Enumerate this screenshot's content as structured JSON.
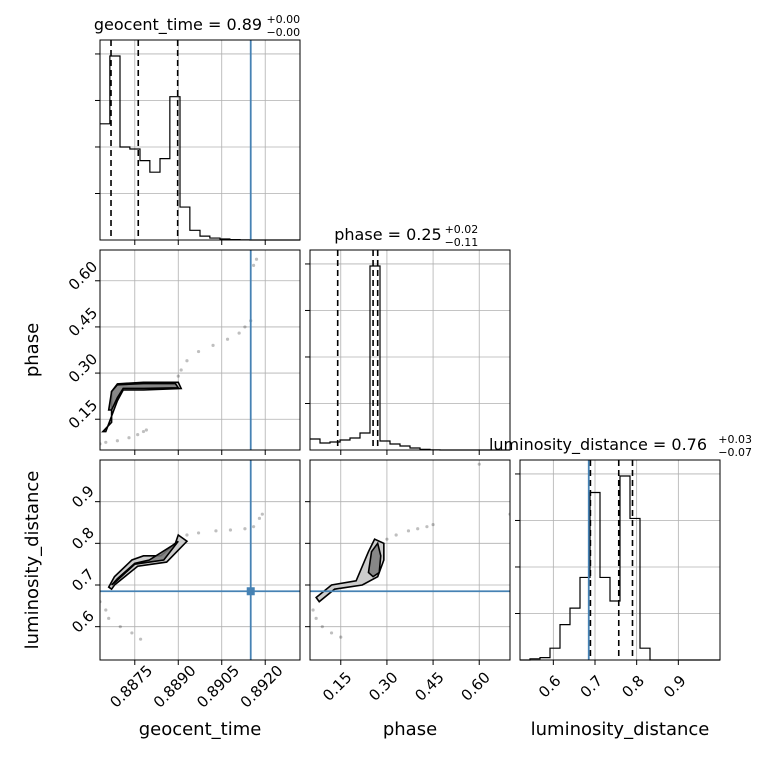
{
  "chart_data": {
    "type": "corner",
    "parameters": [
      "geocent_time",
      "phase",
      "luminosity_distance"
    ],
    "truth": {
      "geocent_time": 0.8915,
      "phase": null,
      "luminosity_distance": 0.685
    },
    "titles": [
      {
        "param": "geocent_time",
        "text": "geocent_time = 0.89",
        "sup": "+0.00",
        "sub": "−0.00"
      },
      {
        "param": "phase",
        "text": "phase = 0.25",
        "sup": "+0.02",
        "sub": "−0.11"
      },
      {
        "param": "luminosity_distance",
        "text": "luminosity_distance = 0.76",
        "sup": "+0.03",
        "sub": "−0.07"
      }
    ],
    "axes": {
      "geocent_time": {
        "range": [
          0.8863,
          0.8932
        ],
        "ticks": [
          0.8875,
          0.889,
          0.8905,
          0.892
        ],
        "tick_labels": [
          "0.8875",
          "0.8890",
          "0.8905",
          "0.8920"
        ],
        "label": "geocent_time"
      },
      "phase": {
        "range": [
          0.05,
          0.7
        ],
        "ticks": [
          0.15,
          0.3,
          0.45,
          0.6
        ],
        "tick_labels": [
          "0.15",
          "0.30",
          "0.45",
          "0.60"
        ],
        "label": "phase"
      },
      "luminosity_distance": {
        "range": [
          0.52,
          1.0
        ],
        "ticks": [
          0.6,
          0.7,
          0.8,
          0.9
        ],
        "tick_labels": [
          "0.6",
          "0.7",
          "0.8",
          "0.9"
        ],
        "label": "luminosity_distance"
      }
    },
    "histograms": {
      "geocent_time": {
        "edges": [
          0.8863,
          0.88664,
          0.88699,
          0.88733,
          0.88768,
          0.88802,
          0.88837,
          0.88871,
          0.88906,
          0.8894,
          0.88975,
          0.89009,
          0.89044,
          0.89078,
          0.89113,
          0.89147,
          0.89182,
          0.89216,
          0.89251,
          0.89285,
          0.8932
        ],
        "counts": [
          0.6,
          0.95,
          0.48,
          0.47,
          0.41,
          0.35,
          0.42,
          0.74,
          0.17,
          0.05,
          0.02,
          0.01,
          0.005,
          0.002,
          0.001,
          0,
          0,
          0,
          0,
          0
        ],
        "quantiles": [
          0.88668,
          0.88762,
          0.88898
        ]
      },
      "phase": {
        "edges": [
          0.05,
          0.0825,
          0.115,
          0.1475,
          0.18,
          0.2125,
          0.245,
          0.2775,
          0.31,
          0.3425,
          0.375,
          0.4075,
          0.44,
          0.4725,
          0.505,
          0.5375,
          0.57,
          0.6025,
          0.635,
          0.6675,
          0.7
        ],
        "counts": [
          0.055,
          0.035,
          0.04,
          0.05,
          0.06,
          0.085,
          0.92,
          0.045,
          0.03,
          0.02,
          0.01,
          0.003,
          0.001,
          0,
          0,
          0,
          0,
          0,
          0,
          0
        ],
        "quantiles": [
          0.14,
          0.255,
          0.27
        ]
      },
      "luminosity_distance": {
        "edges": [
          0.52,
          0.544,
          0.568,
          0.592,
          0.616,
          0.64,
          0.664,
          0.688,
          0.712,
          0.736,
          0.76,
          0.784,
          0.808,
          0.832,
          0.856,
          0.88,
          0.904,
          0.928,
          0.952,
          0.976,
          1.0
        ],
        "counts": [
          0,
          0.005,
          0.01,
          0.05,
          0.15,
          0.22,
          0.35,
          0.71,
          0.35,
          0.25,
          0.78,
          0.6,
          0.05,
          0,
          0,
          0,
          0,
          0,
          0,
          0
        ],
        "quantiles": [
          0.689,
          0.757,
          0.79
        ]
      }
    },
    "scatter_panels": [
      {
        "x": "geocent_time",
        "y": "phase",
        "contours": [
          [
            [
              0.8864,
              0.11
            ],
            [
              0.8867,
              0.14
            ],
            [
              0.8867,
              0.24
            ],
            [
              0.8869,
              0.265
            ],
            [
              0.8878,
              0.27
            ],
            [
              0.889,
              0.27
            ],
            [
              0.8891,
              0.25
            ],
            [
              0.8878,
              0.245
            ],
            [
              0.8871,
              0.245
            ],
            [
              0.8869,
              0.21
            ],
            [
              0.8867,
              0.16
            ],
            [
              0.8865,
              0.11
            ]
          ],
          [
            [
              0.8866,
              0.18
            ],
            [
              0.8867,
              0.24
            ],
            [
              0.8869,
              0.262
            ],
            [
              0.8878,
              0.266
            ],
            [
              0.8889,
              0.266
            ],
            [
              0.889,
              0.252
            ],
            [
              0.8878,
              0.25
            ],
            [
              0.8871,
              0.25
            ],
            [
              0.8869,
              0.22
            ],
            [
              0.8867,
              0.18
            ]
          ]
        ],
        "points": [
          [
            0.8863,
            0.07
          ],
          [
            0.8865,
            0.075
          ],
          [
            0.8869,
            0.08
          ],
          [
            0.8873,
            0.09
          ],
          [
            0.8876,
            0.1
          ],
          [
            0.8878,
            0.11
          ],
          [
            0.8879,
            0.115
          ],
          [
            0.889,
            0.29
          ],
          [
            0.8891,
            0.31
          ],
          [
            0.8893,
            0.34
          ],
          [
            0.8897,
            0.37
          ],
          [
            0.8902,
            0.39
          ],
          [
            0.8907,
            0.41
          ],
          [
            0.8911,
            0.43
          ],
          [
            0.8913,
            0.45
          ],
          [
            0.8915,
            0.47
          ],
          [
            0.8916,
            0.65
          ],
          [
            0.8917,
            0.67
          ]
        ],
        "truth_marker": false
      },
      {
        "x": "geocent_time",
        "y": "luminosity_distance",
        "contours": [
          [
            [
              0.8866,
              0.695
            ],
            [
              0.8868,
              0.72
            ],
            [
              0.8874,
              0.76
            ],
            [
              0.8878,
              0.77
            ],
            [
              0.8884,
              0.77
            ],
            [
              0.8889,
              0.8
            ],
            [
              0.889,
              0.82
            ],
            [
              0.8893,
              0.805
            ],
            [
              0.8886,
              0.755
            ],
            [
              0.8876,
              0.745
            ],
            [
              0.8868,
              0.7
            ],
            [
              0.8867,
              0.69
            ]
          ],
          [
            [
              0.8867,
              0.7
            ],
            [
              0.8869,
              0.715
            ],
            [
              0.8875,
              0.752
            ],
            [
              0.888,
              0.76
            ],
            [
              0.8888,
              0.795
            ],
            [
              0.889,
              0.805
            ],
            [
              0.8885,
              0.76
            ],
            [
              0.8875,
              0.75
            ],
            [
              0.8868,
              0.705
            ]
          ]
        ],
        "points": [
          [
            0.8863,
            0.66
          ],
          [
            0.8865,
            0.64
          ],
          [
            0.8866,
            0.62
          ],
          [
            0.887,
            0.6
          ],
          [
            0.8874,
            0.585
          ],
          [
            0.8877,
            0.57
          ],
          [
            0.8893,
            0.82
          ],
          [
            0.8897,
            0.825
          ],
          [
            0.8903,
            0.83
          ],
          [
            0.8908,
            0.832
          ],
          [
            0.8913,
            0.835
          ],
          [
            0.8916,
            0.84
          ],
          [
            0.8918,
            0.86
          ],
          [
            0.8919,
            0.87
          ]
        ],
        "truth_marker": true
      },
      {
        "x": "phase",
        "y": "luminosity_distance",
        "contours": [
          [
            [
              0.07,
              0.67
            ],
            [
              0.12,
              0.7
            ],
            [
              0.2,
              0.71
            ],
            [
              0.24,
              0.78
            ],
            [
              0.26,
              0.81
            ],
            [
              0.29,
              0.8
            ],
            [
              0.29,
              0.76
            ],
            [
              0.27,
              0.72
            ],
            [
              0.22,
              0.7
            ],
            [
              0.13,
              0.69
            ],
            [
              0.08,
              0.66
            ]
          ],
          [
            [
              0.24,
              0.73
            ],
            [
              0.25,
              0.78
            ],
            [
              0.27,
              0.8
            ],
            [
              0.28,
              0.77
            ],
            [
              0.275,
              0.73
            ],
            [
              0.255,
              0.72
            ]
          ]
        ],
        "points": [
          [
            0.06,
            0.64
          ],
          [
            0.07,
            0.62
          ],
          [
            0.09,
            0.6
          ],
          [
            0.12,
            0.585
          ],
          [
            0.15,
            0.575
          ],
          [
            0.3,
            0.81
          ],
          [
            0.33,
            0.82
          ],
          [
            0.37,
            0.83
          ],
          [
            0.4,
            0.835
          ],
          [
            0.43,
            0.84
          ],
          [
            0.45,
            0.845
          ],
          [
            0.6,
            0.99
          ],
          [
            0.7,
            0.87
          ]
        ],
        "truth_marker": false
      }
    ],
    "colors": {
      "line": "#000000",
      "truth": "#4682b4",
      "grid": "#b0b0b0",
      "fill_outer": "#c8c8c8",
      "fill_inner": "#7a7a7a"
    }
  }
}
